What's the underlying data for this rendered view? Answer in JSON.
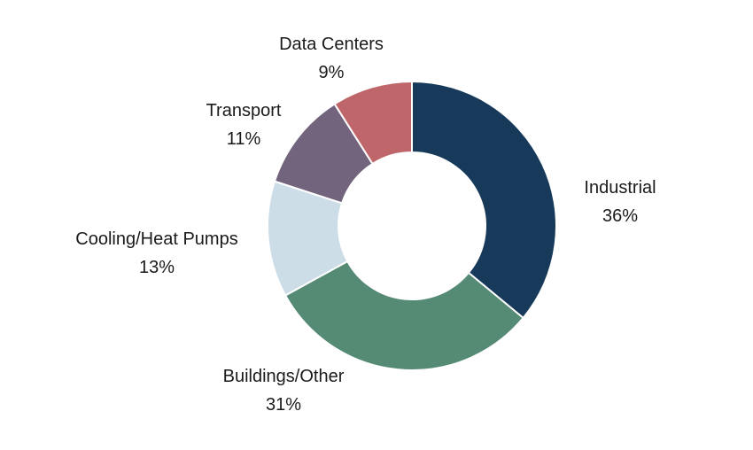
{
  "chart_data": {
    "type": "pie",
    "donut": true,
    "title": "",
    "slices": [
      {
        "label": "Industrial",
        "value": 36,
        "value_label": "36%",
        "color": "#173a5a"
      },
      {
        "label": "Buildings/Other",
        "value": 31,
        "value_label": "31%",
        "color": "#558b74"
      },
      {
        "label": "Cooling/Heat Pumps",
        "value": 13,
        "value_label": "13%",
        "color": "#cddde8"
      },
      {
        "label": "Transport",
        "value": 11,
        "value_label": "11%",
        "color": "#72647d"
      },
      {
        "label": "Data Centers",
        "value": 9,
        "value_label": "9%",
        "color": "#bf666b"
      }
    ],
    "start_angle_deg": 0,
    "direction": "clockwise",
    "legend": "none"
  }
}
